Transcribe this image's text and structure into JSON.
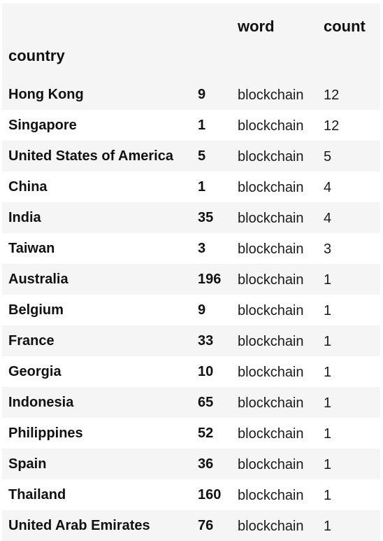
{
  "headers": {
    "word": "word",
    "count": "count",
    "index": "country"
  },
  "rows": [
    {
      "country": "Hong Kong",
      "value": "9",
      "word": "blockchain",
      "count": "12"
    },
    {
      "country": "Singapore",
      "value": "1",
      "word": "blockchain",
      "count": "12"
    },
    {
      "country": "United States of America",
      "value": "5",
      "word": "blockchain",
      "count": "5"
    },
    {
      "country": "China",
      "value": "1",
      "word": "blockchain",
      "count": "4"
    },
    {
      "country": "India",
      "value": "35",
      "word": "blockchain",
      "count": "4"
    },
    {
      "country": "Taiwan",
      "value": "3",
      "word": "blockchain",
      "count": "3"
    },
    {
      "country": "Australia",
      "value": "196",
      "word": "blockchain",
      "count": "1"
    },
    {
      "country": "Belgium",
      "value": "9",
      "word": "blockchain",
      "count": "1"
    },
    {
      "country": "France",
      "value": "33",
      "word": "blockchain",
      "count": "1"
    },
    {
      "country": "Georgia",
      "value": "10",
      "word": "blockchain",
      "count": "1"
    },
    {
      "country": "Indonesia",
      "value": "65",
      "word": "blockchain",
      "count": "1"
    },
    {
      "country": "Philippines",
      "value": "52",
      "word": "blockchain",
      "count": "1"
    },
    {
      "country": "Spain",
      "value": "36",
      "word": "blockchain",
      "count": "1"
    },
    {
      "country": "Thailand",
      "value": "160",
      "word": "blockchain",
      "count": "1"
    },
    {
      "country": "United Arab Emirates",
      "value": "76",
      "word": "blockchain",
      "count": "1"
    }
  ]
}
